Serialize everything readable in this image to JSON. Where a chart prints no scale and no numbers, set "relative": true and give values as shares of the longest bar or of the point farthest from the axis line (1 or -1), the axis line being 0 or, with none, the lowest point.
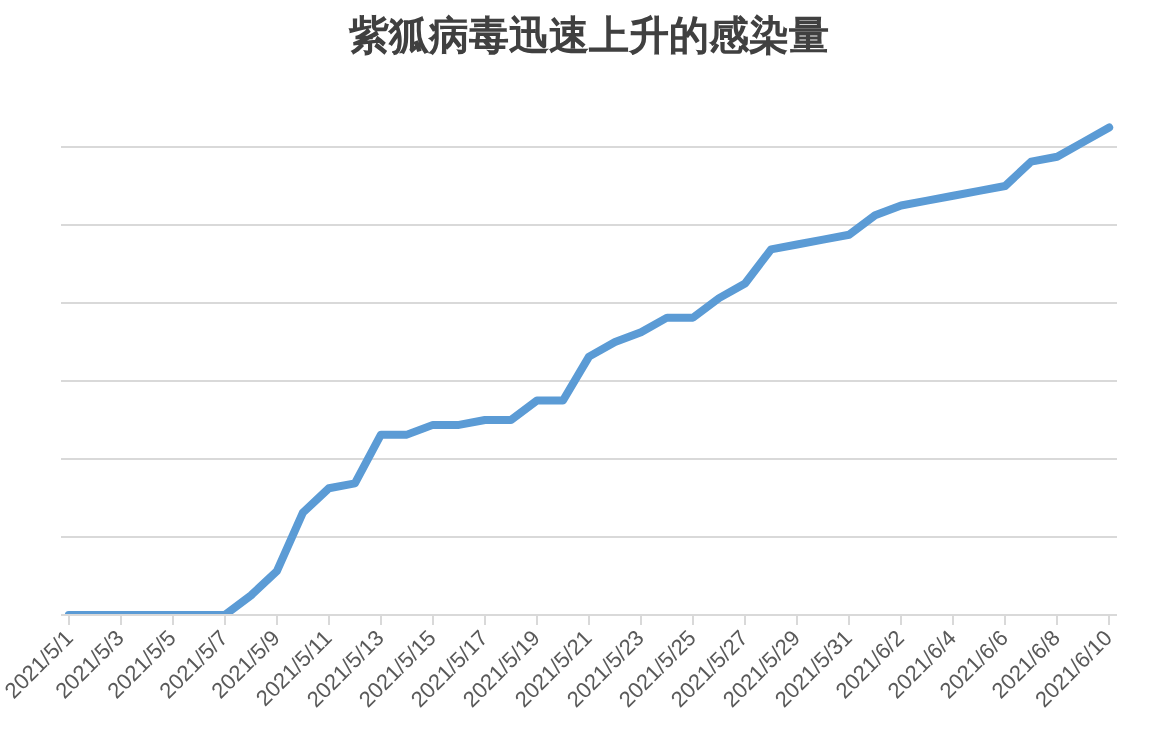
{
  "chart_data": {
    "type": "line",
    "title": "紫狐病毒迅速上升的感染量",
    "relative": true,
    "grid": "y",
    "marker": "none",
    "line_style": "solid",
    "categories": [
      "2021/5/1",
      null,
      "2021/5/3",
      null,
      "2021/5/5",
      null,
      "2021/5/7",
      null,
      "2021/5/9",
      null,
      "2021/5/11",
      null,
      "2021/5/13",
      null,
      "2021/5/15",
      null,
      "2021/5/17",
      null,
      "2021/5/19",
      null,
      "2021/5/21",
      null,
      "2021/5/23",
      null,
      "2021/5/25",
      null,
      "2021/5/27",
      null,
      "2021/5/29",
      null,
      "2021/5/31",
      null,
      "2021/6/2",
      null,
      "2021/6/4",
      null,
      "2021/6/6",
      null,
      "2021/6/8",
      null,
      "2021/6/10"
    ],
    "series": [
      {
        "color": "#5b9bd5",
        "values": [
          0,
          0,
          0,
          0,
          0,
          0,
          0,
          0.04,
          0.09,
          0.21,
          0.26,
          0.27,
          0.37,
          0.37,
          0.39,
          0.39,
          0.4,
          0.4,
          0.44,
          0.44,
          0.53,
          0.56,
          0.58,
          0.61,
          0.61,
          0.65,
          0.68,
          0.75,
          0.76,
          0.77,
          0.78,
          0.82,
          0.84,
          0.85,
          0.86,
          0.87,
          0.88,
          0.93,
          0.94,
          0.97,
          1
        ]
      }
    ]
  }
}
